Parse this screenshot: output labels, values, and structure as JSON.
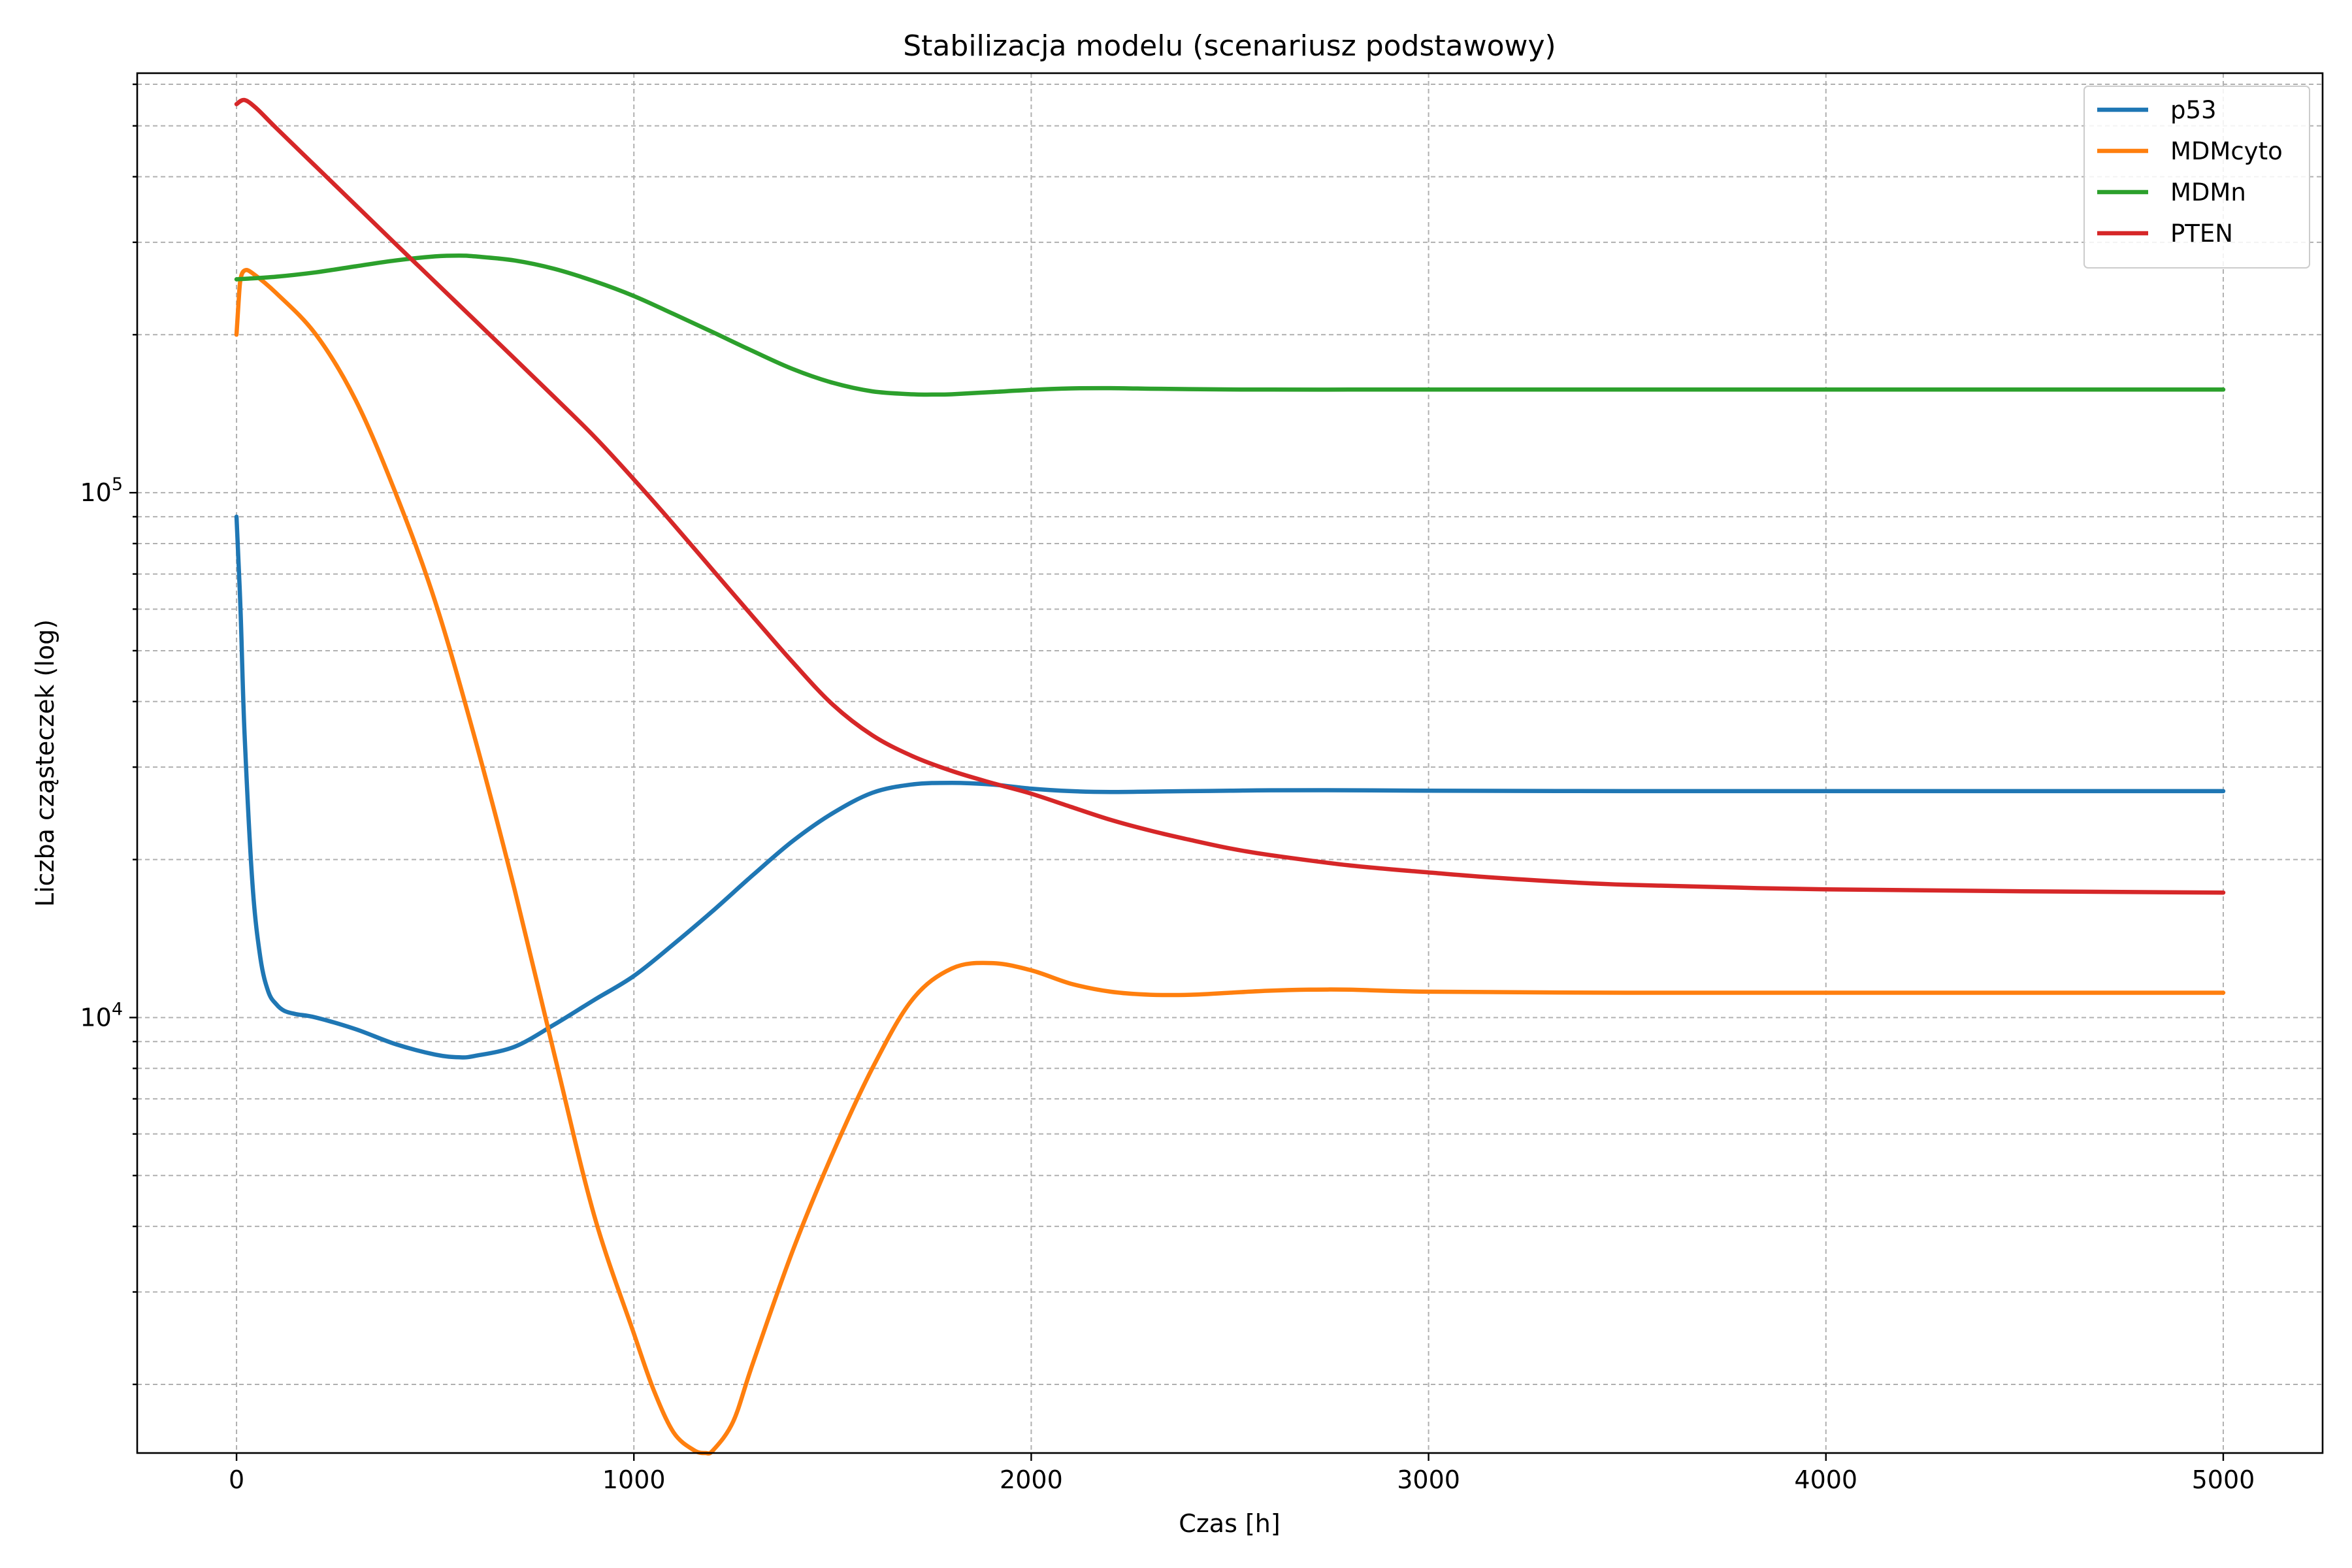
{
  "chart_data": {
    "type": "line",
    "title": "Stabilizacja modelu (scenariusz podstawowy)",
    "xlabel": "Czas [h]",
    "ylabel": "Liczba cząsteczek (log)",
    "xlim": [
      -250,
      5250
    ],
    "ylim": [
      1480,
      630000
    ],
    "yscale": "log",
    "xticks": [
      {
        "value": 0,
        "label": "0"
      },
      {
        "value": 1000,
        "label": "1000"
      },
      {
        "value": 2000,
        "label": "2000"
      },
      {
        "value": 3000,
        "label": "3000"
      },
      {
        "value": 4000,
        "label": "4000"
      },
      {
        "value": 5000,
        "label": "5000"
      }
    ],
    "yticks": [
      {
        "value": 10000,
        "base": "10",
        "exp": "4"
      },
      {
        "value": 100000,
        "base": "10",
        "exp": "5"
      }
    ],
    "grid": true,
    "legend_position": "upper right",
    "series": [
      {
        "name": "p53",
        "color": "#1f77b4",
        "x": [
          0,
          10,
          20,
          40,
          60,
          80,
          100,
          120,
          150,
          200,
          300,
          400,
          500,
          560,
          600,
          700,
          800,
          900,
          1000,
          1100,
          1200,
          1300,
          1400,
          1500,
          1600,
          1700,
          1800,
          1900,
          2000,
          2100,
          2200,
          2300,
          2400,
          2500,
          2600,
          2800,
          3000,
          3500,
          4000,
          4500,
          5000
        ],
        "y": [
          90000,
          60000,
          35000,
          18000,
          13000,
          11200,
          10600,
          10300,
          10150,
          10000,
          9500,
          8900,
          8500,
          8400,
          8450,
          8800,
          9700,
          10800,
          12000,
          13800,
          16000,
          18700,
          21700,
          24500,
          26800,
          27800,
          28000,
          27800,
          27300,
          27000,
          26900,
          26950,
          27000,
          27050,
          27100,
          27100,
          27050,
          27000,
          27000,
          27000,
          27000
        ]
      },
      {
        "name": "MDMcyto",
        "color": "#ff7f0e",
        "x": [
          0,
          5,
          10,
          20,
          40,
          100,
          200,
          300,
          400,
          500,
          600,
          700,
          800,
          900,
          1000,
          1050,
          1100,
          1150,
          1180,
          1200,
          1250,
          1300,
          1400,
          1500,
          1600,
          1700,
          1800,
          1900,
          2000,
          2100,
          2200,
          2300,
          2400,
          2500,
          2600,
          2700,
          2800,
          3000,
          3500,
          4000,
          4500,
          5000
        ],
        "y": [
          200000,
          230000,
          255000,
          265000,
          262000,
          240000,
          200000,
          150000,
          100000,
          62000,
          34000,
          17500,
          8500,
          4200,
          2500,
          1950,
          1620,
          1500,
          1480,
          1500,
          1700,
          2200,
          3600,
          5500,
          8000,
          10800,
          12400,
          12700,
          12300,
          11600,
          11200,
          11050,
          11050,
          11150,
          11250,
          11300,
          11300,
          11200,
          11150,
          11150,
          11150,
          11150
        ]
      },
      {
        "name": "MDMn",
        "color": "#2ca02c",
        "x": [
          0,
          100,
          200,
          300,
          400,
          500,
          560,
          600,
          700,
          800,
          900,
          1000,
          1100,
          1200,
          1300,
          1400,
          1500,
          1600,
          1700,
          1750,
          1800,
          1900,
          2000,
          2100,
          2200,
          2300,
          2400,
          2500,
          2600,
          2800,
          3000,
          3500,
          4000,
          4500,
          5000
        ],
        "y": [
          255000,
          258000,
          263000,
          270000,
          277000,
          282000,
          283000,
          282000,
          277000,
          267000,
          253000,
          237000,
          219000,
          202000,
          186000,
          172000,
          162000,
          156000,
          154000,
          153800,
          154000,
          155500,
          157000,
          158000,
          158200,
          157800,
          157500,
          157300,
          157200,
          157200,
          157200,
          157200,
          157200,
          157200,
          157200
        ]
      },
      {
        "name": "PTEN",
        "color": "#d62728",
        "x": [
          0,
          20,
          50,
          100,
          200,
          300,
          400,
          500,
          600,
          700,
          800,
          900,
          1000,
          1100,
          1200,
          1300,
          1400,
          1500,
          1600,
          1700,
          1800,
          1900,
          2000,
          2100,
          2200,
          2300,
          2400,
          2500,
          2600,
          2800,
          3000,
          3200,
          3500,
          4000,
          4500,
          5000
        ],
        "y": [
          550000,
          560000,
          540000,
          495000,
          418000,
          353000,
          298000,
          252000,
          213000,
          180000,
          152000,
          128000,
          106000,
          87000,
          71000,
          58000,
          47500,
          39500,
          34500,
          31500,
          29500,
          28000,
          26700,
          25200,
          23800,
          22700,
          21800,
          21000,
          20400,
          19500,
          18900,
          18400,
          17900,
          17550,
          17400,
          17300
        ]
      }
    ]
  }
}
